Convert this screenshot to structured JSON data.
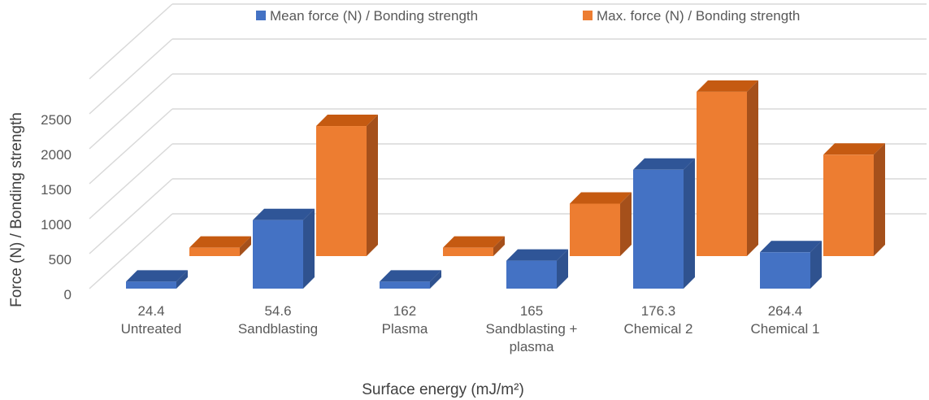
{
  "chart_data": {
    "type": "bar",
    "style": "3d-clustered-column",
    "categories": [
      [
        "24.4",
        "Untreated"
      ],
      [
        "54.6",
        "Sandblasting"
      ],
      [
        "162",
        "Plasma"
      ],
      [
        "165",
        "Sandblasting +",
        "plasma"
      ],
      [
        "176.3",
        "Chemical 2"
      ],
      [
        "264.4",
        "Chemical 1"
      ]
    ],
    "series": [
      {
        "name": "Mean force (N) / Bonding strength",
        "color": "#4472C4",
        "side": "#2F528F",
        "top": "#2F5597",
        "values": [
          100,
          980,
          100,
          400,
          1700,
          520
        ]
      },
      {
        "name": "Max. force (N) / Bonding strength",
        "color": "#ED7D31",
        "side": "#A5501B",
        "top": "#C55A11",
        "values": [
          120,
          1860,
          120,
          750,
          2350,
          1450
        ]
      }
    ],
    "y_ticks": [
      "0",
      "500",
      "1000",
      "1500",
      "2000",
      "2500"
    ],
    "ylim": [
      0,
      2500
    ],
    "xlabel": "Surface energy (mJ/m²)",
    "ylabel": "Force (N) / Bonding strength",
    "legend_position": "top",
    "grid": true
  }
}
